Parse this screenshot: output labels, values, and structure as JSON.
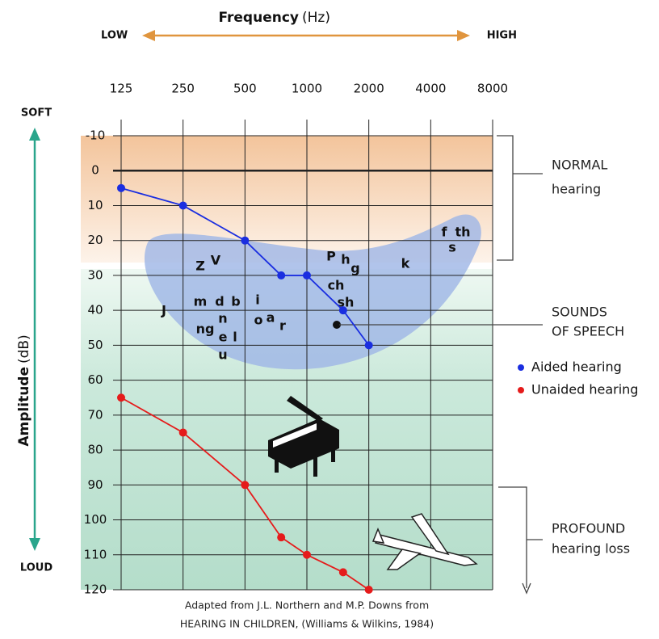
{
  "chart_data": {
    "type": "line",
    "title": "Frequency",
    "title_unit": "(Hz)",
    "x_low_label": "LOW",
    "x_high_label": "HIGH",
    "ylabel": "Amplitude",
    "ylabel_unit": "(dB)",
    "y_top_label": "SOFT",
    "y_bottom_label": "LOUD",
    "x": [
      125,
      250,
      500,
      750,
      1000,
      1500,
      2000
    ],
    "series": [
      {
        "name": "Aided hearing",
        "color": "#1a2ee0",
        "values": [
          5,
          10,
          20,
          30,
          30,
          40,
          50
        ]
      },
      {
        "name": "Unaided hearing",
        "color": "#e51b1b",
        "values": [
          65,
          75,
          90,
          105,
          110,
          115,
          120
        ]
      }
    ],
    "xlim": [
      125,
      8000
    ],
    "xticks": [
      125,
      250,
      500,
      1000,
      2000,
      4000,
      8000
    ],
    "xscale": "log",
    "ylim": [
      -10,
      120
    ],
    "yticks": [
      -10,
      0,
      10,
      20,
      30,
      40,
      50,
      60,
      70,
      80,
      90,
      100,
      110,
      120
    ],
    "y_inverted": true,
    "grid": true,
    "annotations": {
      "normal": [
        "NORMAL",
        "hearing"
      ],
      "speech": [
        "SOUNDS",
        "OF SPEECH"
      ],
      "profound": [
        "PROFOUND",
        "hearing loss"
      ]
    },
    "speech_sounds": [
      "Z",
      "V",
      "m",
      "d",
      "b",
      "i",
      "J",
      "ng",
      "n",
      "e",
      "l",
      "u",
      "o",
      "a",
      "r",
      "P",
      "h",
      "g",
      "ch",
      "sh",
      "k",
      "f",
      "th",
      "s"
    ],
    "caption": [
      "Adapted from J.L. Northern and M.P. Downs from",
      "HEARING IN CHILDREN, (Williams & Wilkins, 1984)"
    ]
  }
}
